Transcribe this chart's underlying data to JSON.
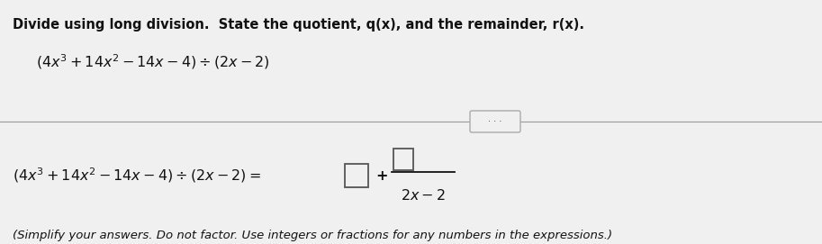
{
  "bg_color": "#d8d8d8",
  "panel_color": "#f0f0f0",
  "text_color": "#111111",
  "box_color": "#f0f0f0",
  "divider_color": "#999999",
  "btn_color": "#e0e0e0",
  "font_size_title": 10.5,
  "font_size_body": 11.5,
  "font_size_note": 9.5,
  "fig_width": 9.13,
  "fig_height": 2.71
}
